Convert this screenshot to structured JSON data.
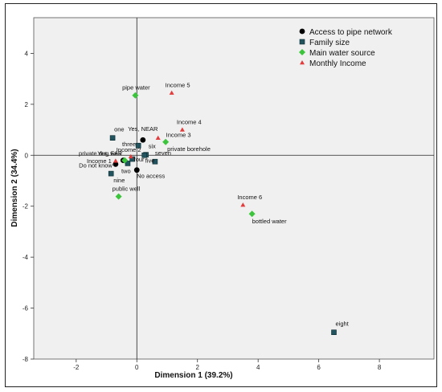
{
  "chart_data": {
    "type": "scatter",
    "title": "",
    "xlabel": "Dimension 1 (39.2%)",
    "ylabel": "Dimension 2 (34.4%)",
    "xlim": [
      -3.4,
      9.8
    ],
    "ylim": [
      -8.0,
      5.4
    ],
    "xticks": [
      -2,
      0,
      2,
      4,
      6,
      8
    ],
    "yticks": [
      4,
      2,
      0,
      -2,
      -4,
      -6,
      -8
    ],
    "grid": false,
    "reference_lines": {
      "x": 0,
      "y": 0
    },
    "legend_position": "top-right",
    "colors": {
      "plot_background": "#f0f0f0",
      "access": "#000000",
      "family": "#21545e",
      "source": "#3cc43c",
      "income": "#e23c3c"
    },
    "series": [
      {
        "name": "Access to pipe network",
        "marker": "circle",
        "points": [
          {
            "label": "Yes, NEAR",
            "x": 0.2,
            "y": 0.6
          },
          {
            "label": "Yes, FAR",
            "x": -0.45,
            "y": -0.2
          },
          {
            "label": "Do not know",
            "x": -0.7,
            "y": -0.35
          },
          {
            "label": "No access",
            "x": 0.0,
            "y": -0.58
          }
        ]
      },
      {
        "name": "Family size",
        "marker": "square",
        "points": [
          {
            "label": "one",
            "x": -0.8,
            "y": 0.68
          },
          {
            "label": "three",
            "x": 0.05,
            "y": 0.38
          },
          {
            "label": "six",
            "x": 0.3,
            "y": 0.02
          },
          {
            "label": "seven",
            "x": 0.6,
            "y": -0.25
          },
          {
            "label": "two",
            "x": -0.3,
            "y": -0.32
          },
          {
            "label": "four",
            "x": -0.15,
            "y": -0.15
          },
          {
            "label": "five",
            "x": 0.25,
            "y": 0.0
          },
          {
            "label": "nine",
            "x": -0.85,
            "y": -0.72
          },
          {
            "label": "eight",
            "x": 6.5,
            "y": -6.95
          }
        ]
      },
      {
        "name": "Main water source",
        "marker": "diamond",
        "points": [
          {
            "label": "pipe water",
            "x": -0.05,
            "y": 2.35
          },
          {
            "label": "private borehole",
            "x": 0.95,
            "y": 0.52
          },
          {
            "label": "private dug well",
            "x": -0.4,
            "y": -0.2
          },
          {
            "label": "public well",
            "x": -0.6,
            "y": -1.62
          },
          {
            "label": "bottled water",
            "x": 3.8,
            "y": -2.3
          }
        ]
      },
      {
        "name": "Monthly Income",
        "marker": "triangle",
        "points": [
          {
            "label": "Income 5",
            "x": 1.15,
            "y": 2.45
          },
          {
            "label": "Income 4",
            "x": 1.5,
            "y": 1.0
          },
          {
            "label": "Income 3",
            "x": 0.7,
            "y": 0.68
          },
          {
            "label": "Income 2",
            "x": -0.2,
            "y": -0.05
          },
          {
            "label": "Income 1",
            "x": -0.7,
            "y": -0.22
          },
          {
            "label": "Income 6",
            "x": 3.5,
            "y": -1.95
          }
        ]
      }
    ]
  }
}
